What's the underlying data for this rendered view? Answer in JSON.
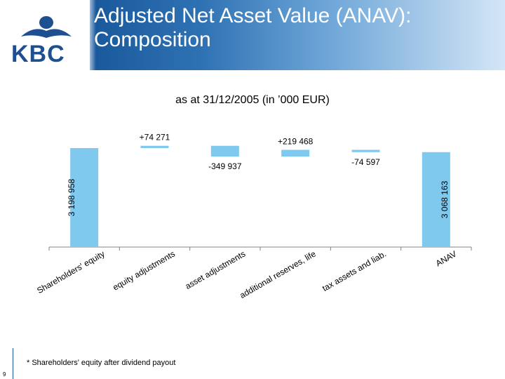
{
  "slide": {
    "title_line1": "Adjusted Net Asset Value (ANAV):",
    "title_line2": "Composition",
    "subtitle": "as at 31/12/2005 (in ’000 EUR)",
    "logo_text": "KBC",
    "footnote": "* Shareholders' equity after dividend payout",
    "page_number": "9"
  },
  "colors": {
    "bar": "#7fc8ee",
    "axis": "#808080",
    "brand": "#1d4f91"
  },
  "chart_data": {
    "type": "bar",
    "subtype": "waterfall",
    "title": "",
    "categories": [
      "Shareholders' equity",
      "equity adjustments",
      "asset adjustments",
      "additional reserves, life",
      "tax assets and liab.",
      "ANAV"
    ],
    "values": [
      3198958,
      74271,
      -349937,
      219468,
      -74597,
      3068163
    ],
    "labels": [
      "3 198 958",
      "+74 271",
      "-349 937",
      "+219 468",
      "-74 597",
      "3 068 163"
    ],
    "bar_kind": [
      "total",
      "delta",
      "delta",
      "delta",
      "delta",
      "total"
    ],
    "category_label_rotation_deg": -30
  }
}
